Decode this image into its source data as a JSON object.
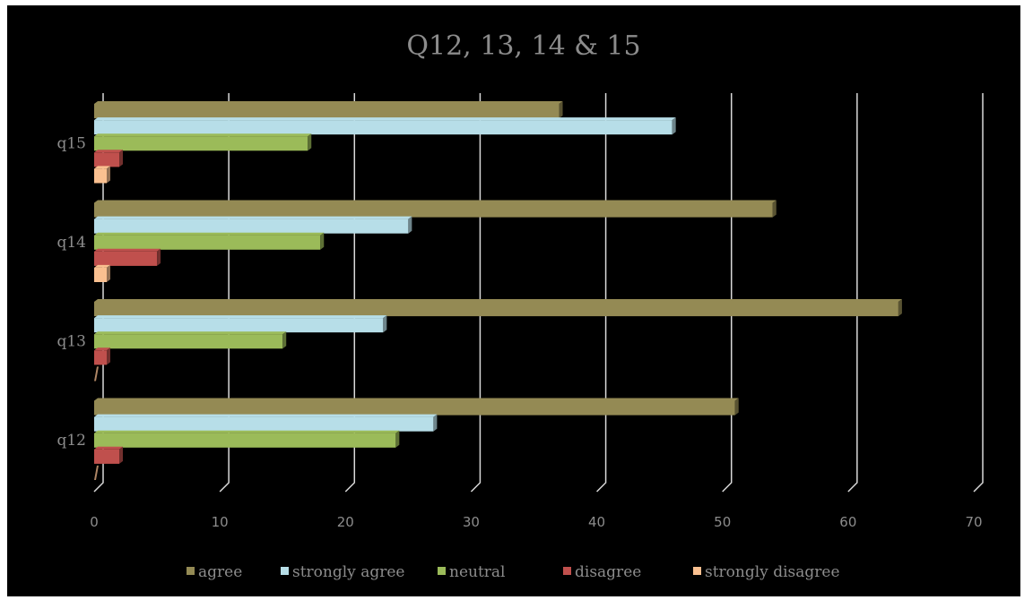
{
  "chart_data": {
    "type": "bar",
    "orientation": "horizontal",
    "title": "Q12, 13, 14 & 15",
    "categories": [
      "q12",
      "q13",
      "q14",
      "q15"
    ],
    "series": [
      {
        "name": "agree",
        "color": "#948a54",
        "values": [
          51,
          64,
          54,
          37
        ]
      },
      {
        "name": "strongly agree",
        "color": "#b7dee8",
        "values": [
          27,
          23,
          25,
          46
        ]
      },
      {
        "name": "neutral",
        "color": "#9bbb59",
        "values": [
          24,
          15,
          18,
          17
        ]
      },
      {
        "name": "disagree",
        "color": "#c0504d",
        "values": [
          2,
          1,
          5,
          2
        ]
      },
      {
        "name": "strongly disagree",
        "color": "#fac090",
        "values": [
          0,
          0,
          1,
          1
        ]
      }
    ],
    "xlim": [
      0,
      70
    ],
    "xticks": [
      "0",
      "10",
      "20",
      "30",
      "40",
      "50",
      "60",
      "70"
    ],
    "grid": true,
    "legend_position": "bottom",
    "background": "#000000"
  }
}
